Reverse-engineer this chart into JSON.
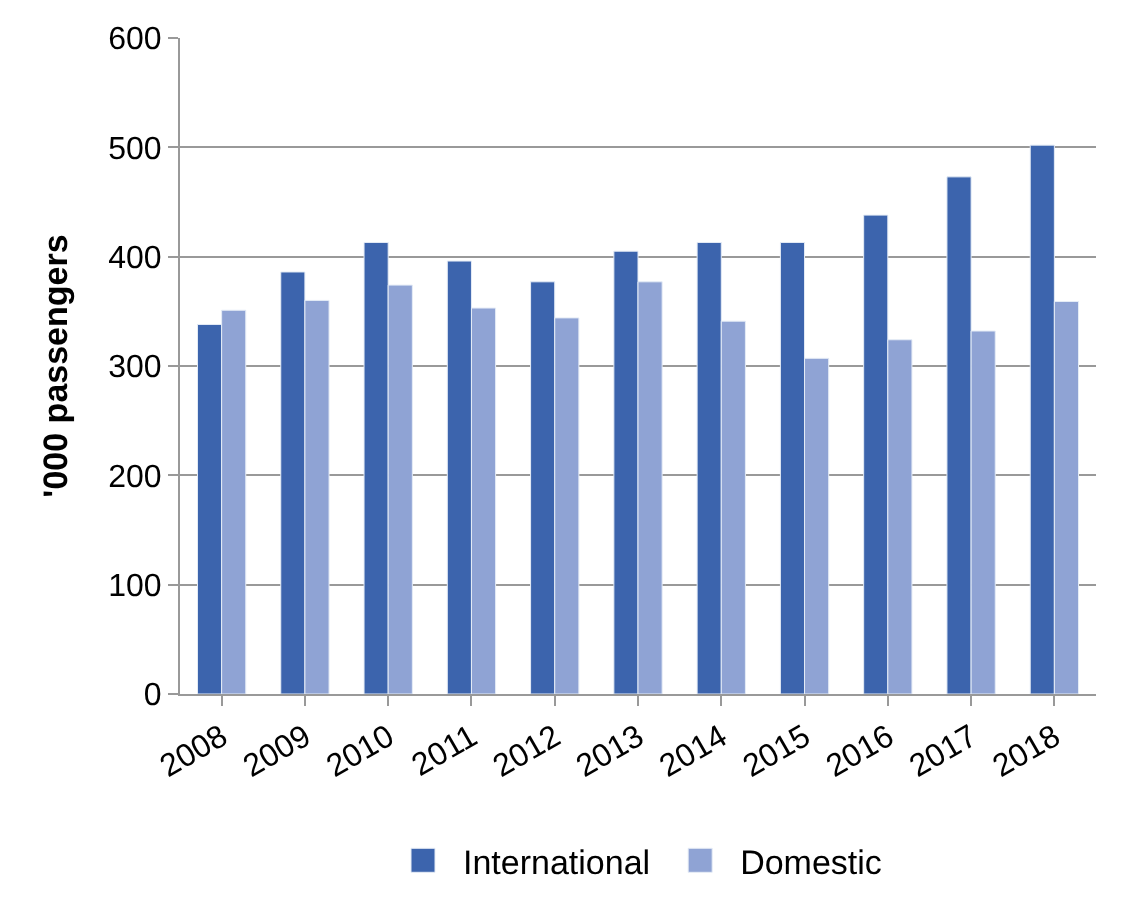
{
  "chart_data": {
    "type": "bar",
    "ylabel": "'000 passengers",
    "categories": [
      "2008",
      "2009",
      "2010",
      "2011",
      "2012",
      "2013",
      "2014",
      "2015",
      "2016",
      "2017",
      "2018"
    ],
    "series": [
      {
        "name": "International",
        "color": "#3c64ad",
        "values": [
          338,
          386,
          413,
          396,
          377,
          405,
          413,
          413,
          438,
          473,
          502
        ]
      },
      {
        "name": "Domestic",
        "color": "#8fa3d4",
        "values": [
          351,
          360,
          374,
          353,
          344,
          377,
          341,
          307,
          324,
          332,
          359
        ]
      }
    ],
    "ylim": [
      0,
      600
    ],
    "yticks": [
      0,
      100,
      200,
      300,
      400,
      500,
      600
    ],
    "grid": "y",
    "legend": "bottom"
  }
}
